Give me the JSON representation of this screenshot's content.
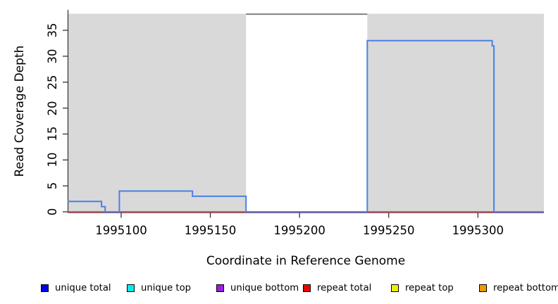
{
  "chart_data": {
    "type": "line",
    "title": "",
    "xlabel": "Coordinate in Reference Genome",
    "ylabel": "Read Coverage Depth",
    "xlim": [
      1995070,
      1995337
    ],
    "ylim": [
      0,
      38.8
    ],
    "x_ticks": [
      1995100,
      1995150,
      1995200,
      1995250,
      1995300
    ],
    "y_ticks": [
      0,
      5,
      10,
      15,
      20,
      25,
      30,
      35
    ],
    "grid": false,
    "background_color": "#ffffff",
    "panel_shade_color": "#d9d9d9",
    "repeat_regions": [
      [
        1995070,
        1995170
      ],
      [
        1995238,
        1995337
      ]
    ],
    "unique_region_top_line": {
      "x": [
        1995170,
        1995238
      ],
      "y": 38,
      "color": "#808080"
    },
    "series": [
      {
        "name": "unique total",
        "line_color": "#4a80e8",
        "steps": [
          [
            1995070,
            1995089,
            2
          ],
          [
            1995089,
            1995091,
            1
          ],
          [
            1995091,
            1995099,
            0
          ],
          [
            1995099,
            1995140,
            4
          ],
          [
            1995140,
            1995170,
            3
          ],
          [
            1995170,
            1995238,
            0
          ],
          [
            1995238,
            1995308,
            33
          ],
          [
            1995308,
            1995309,
            32
          ],
          [
            1995309,
            1995337,
            0
          ]
        ]
      },
      {
        "name": "repeat total",
        "line_color": "#dd3856",
        "steps": [
          [
            1995070,
            1995337,
            0
          ]
        ]
      }
    ],
    "zero_overlap_color": "#7b68ee",
    "legend_position": "bottom",
    "legend": [
      {
        "label": "unique total",
        "color": "#0000ee"
      },
      {
        "label": "unique top",
        "color": "#00eeee"
      },
      {
        "label": "unique bottom",
        "color": "#981fe3"
      },
      {
        "label": "repeat total",
        "color": "#ee0000"
      },
      {
        "label": "repeat top",
        "color": "#eeee00"
      },
      {
        "label": "repeat bottom",
        "color": "#ee9a00"
      }
    ]
  }
}
